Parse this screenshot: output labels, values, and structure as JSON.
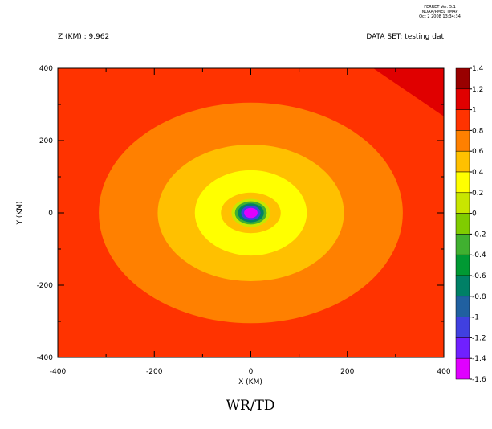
{
  "chart_data": {
    "type": "contour",
    "title": "WR/TD",
    "header_left": "Z (KM) : 9.962",
    "header_right": "DATA SET: testing dat",
    "stamp": [
      "FERRET Ver. 5.1",
      "NOAA/PMEL TMAP",
      "Oct  2 2008 13:34:34"
    ],
    "x_label": "X (KM)",
    "y_label": "Y (KM)",
    "xlim": [
      -400,
      400
    ],
    "ylim": [
      -400,
      400
    ],
    "xticks": [
      -400,
      -200,
      0,
      200,
      400
    ],
    "yticks": [
      -400,
      -200,
      0,
      200,
      400
    ],
    "xminorticks": [
      -300,
      -100,
      100,
      300
    ],
    "yminorticks": [
      -300,
      -100,
      100,
      300
    ],
    "levels": [
      1.4,
      1.2,
      1,
      0.8,
      0.6,
      0.4,
      0.2,
      0,
      -0.2,
      -0.4,
      -0.6,
      -0.8,
      -1,
      -1.2,
      -1.4,
      -1.6
    ],
    "colors": [
      "#990000",
      "#e00000",
      "#ff3300",
      "#ff8000",
      "#ffc000",
      "#ffff00",
      "#c8e600",
      "#80cc00",
      "#40b030",
      "#009933",
      "#008066",
      "#2060a0",
      "#4040e0",
      "#7020ff",
      "#e000ff"
    ],
    "background_level": 0.8,
    "corner": {
      "level": 1,
      "points": [
        [
          254,
          400
        ],
        [
          400,
          400
        ],
        [
          400,
          267
        ]
      ]
    },
    "regions": [
      {
        "level": 0.6,
        "rx": 315,
        "ry": 305
      },
      {
        "level": 0.4,
        "rx": 193,
        "ry": 189
      },
      {
        "level": 0.2,
        "rx": 116,
        "ry": 118
      },
      {
        "level": 0.4,
        "rx": 62,
        "ry": 56
      },
      {
        "level": 0,
        "rx": 40,
        "ry": 39
      },
      {
        "level": -0.4,
        "rx": 33,
        "ry": 32
      },
      {
        "level": -0.8,
        "rx": 27,
        "ry": 26
      },
      {
        "level": -1.2,
        "rx": 20,
        "ry": 20
      },
      {
        "level": -1.6,
        "rx": 14,
        "ry": 14
      }
    ]
  }
}
